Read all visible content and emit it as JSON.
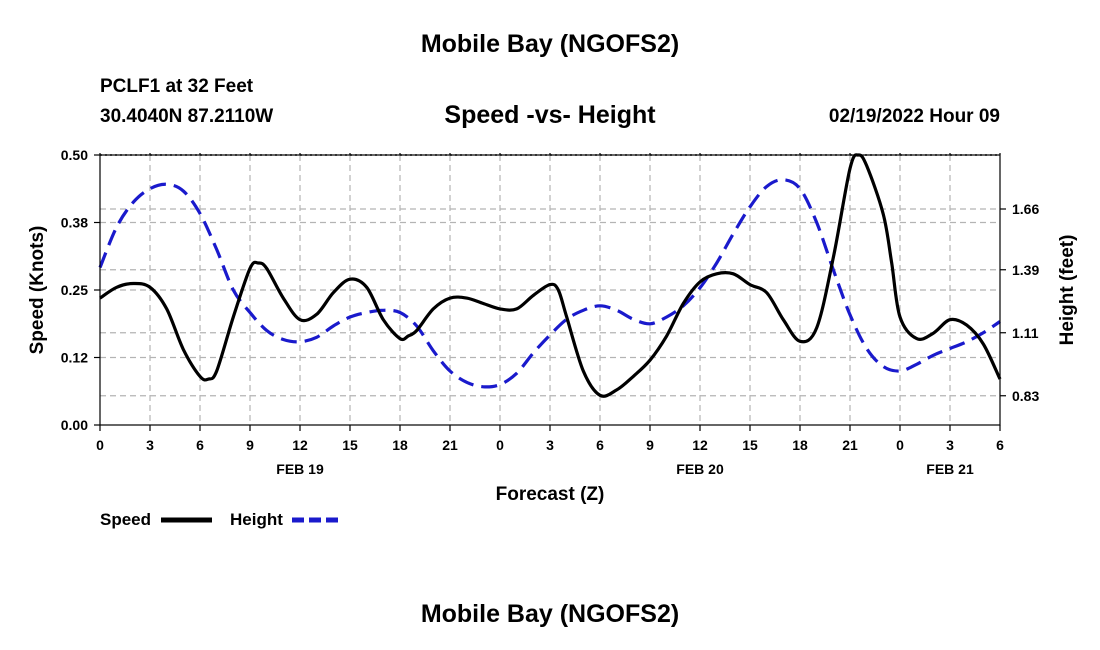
{
  "header": {
    "title": "Mobile Bay (NGOFS2)",
    "station": "PCLF1 at 32 Feet",
    "coords": "30.4040N  87.2110W",
    "subtitle": "Speed -vs- Height",
    "timestamp": "02/19/2022 Hour 09",
    "footer_title": "Mobile Bay (NGOFS2)"
  },
  "chart_data": {
    "type": "line",
    "title": "Speed -vs- Height",
    "xlabel": "Forecast (Z)",
    "ylabel": "Speed (Knots)",
    "y2label": "Height (feet)",
    "grid": true,
    "legend_position": "bottom-left",
    "x_range": [
      0,
      54
    ],
    "x_ticks": [
      "0",
      "3",
      "6",
      "9",
      "12",
      "15",
      "18",
      "21",
      "0",
      "3",
      "6",
      "9",
      "12",
      "15",
      "18",
      "21",
      "0",
      "3",
      "6"
    ],
    "x_day_labels": [
      {
        "label": "FEB 19",
        "at": 12
      },
      {
        "label": "FEB 20",
        "at": 36
      },
      {
        "label": "FEB 21",
        "at": 51
      }
    ],
    "ylim": [
      0,
      0.5
    ],
    "y_ticks": [
      "0.00",
      "0.12",
      "0.25",
      "0.38",
      "0.50"
    ],
    "y2lim": [
      0.7,
      1.9
    ],
    "y2_ticks": [
      "0.83",
      "1.11",
      "1.39",
      "1.66"
    ],
    "colors": {
      "speed": "#000000",
      "height": "#1a1acc",
      "grid": "#b4b4b4"
    },
    "series": [
      {
        "name": "Speed",
        "axis": "left",
        "style": "solid",
        "x": [
          0,
          1,
          2,
          3,
          4,
          5,
          6,
          6.5,
          7,
          8,
          9,
          9.5,
          10,
          11,
          12,
          13,
          14,
          15,
          16,
          17,
          18,
          18.5,
          19,
          20,
          21,
          22,
          23,
          24,
          25,
          26,
          27,
          27.5,
          28,
          29,
          30,
          31,
          32,
          33,
          34,
          35,
          36,
          37,
          38,
          39,
          40,
          41,
          42,
          43,
          44,
          45,
          45.5,
          46,
          47,
          47.5,
          48,
          49,
          50,
          51,
          52,
          53,
          54
        ],
        "values": [
          0.235,
          0.255,
          0.262,
          0.255,
          0.215,
          0.14,
          0.09,
          0.085,
          0.1,
          0.2,
          0.29,
          0.3,
          0.29,
          0.235,
          0.195,
          0.205,
          0.245,
          0.27,
          0.255,
          0.195,
          0.16,
          0.165,
          0.175,
          0.215,
          0.235,
          0.235,
          0.225,
          0.215,
          0.215,
          0.24,
          0.26,
          0.25,
          0.2,
          0.1,
          0.055,
          0.065,
          0.09,
          0.12,
          0.165,
          0.225,
          0.265,
          0.28,
          0.28,
          0.26,
          0.245,
          0.195,
          0.155,
          0.18,
          0.31,
          0.475,
          0.5,
          0.48,
          0.39,
          0.3,
          0.2,
          0.16,
          0.17,
          0.195,
          0.185,
          0.15,
          0.085
        ]
      },
      {
        "name": "Height",
        "axis": "right",
        "style": "dashed",
        "x": [
          0,
          1,
          2,
          3,
          4,
          5,
          6,
          7,
          8,
          9,
          10,
          11,
          12,
          13,
          14,
          15,
          16,
          17,
          18,
          19,
          20,
          21,
          22,
          23,
          24,
          25,
          26,
          27,
          28,
          29,
          30,
          31,
          32,
          33,
          34,
          35,
          36,
          37,
          38,
          39,
          40,
          41,
          42,
          43,
          44,
          45,
          46,
          47,
          48,
          49,
          50,
          51,
          52,
          53,
          54
        ],
        "values": [
          1.4,
          1.58,
          1.69,
          1.75,
          1.77,
          1.74,
          1.64,
          1.48,
          1.3,
          1.2,
          1.12,
          1.08,
          1.07,
          1.09,
          1.14,
          1.18,
          1.2,
          1.21,
          1.2,
          1.14,
          1.03,
          0.94,
          0.89,
          0.87,
          0.88,
          0.93,
          1.02,
          1.1,
          1.17,
          1.21,
          1.23,
          1.21,
          1.17,
          1.15,
          1.18,
          1.23,
          1.31,
          1.42,
          1.55,
          1.67,
          1.76,
          1.79,
          1.75,
          1.6,
          1.39,
          1.19,
          1.04,
          0.96,
          0.94,
          0.97,
          1.01,
          1.04,
          1.07,
          1.11,
          1.16
        ]
      }
    ]
  },
  "legend": {
    "speed_label": "Speed",
    "height_label": "Height"
  }
}
